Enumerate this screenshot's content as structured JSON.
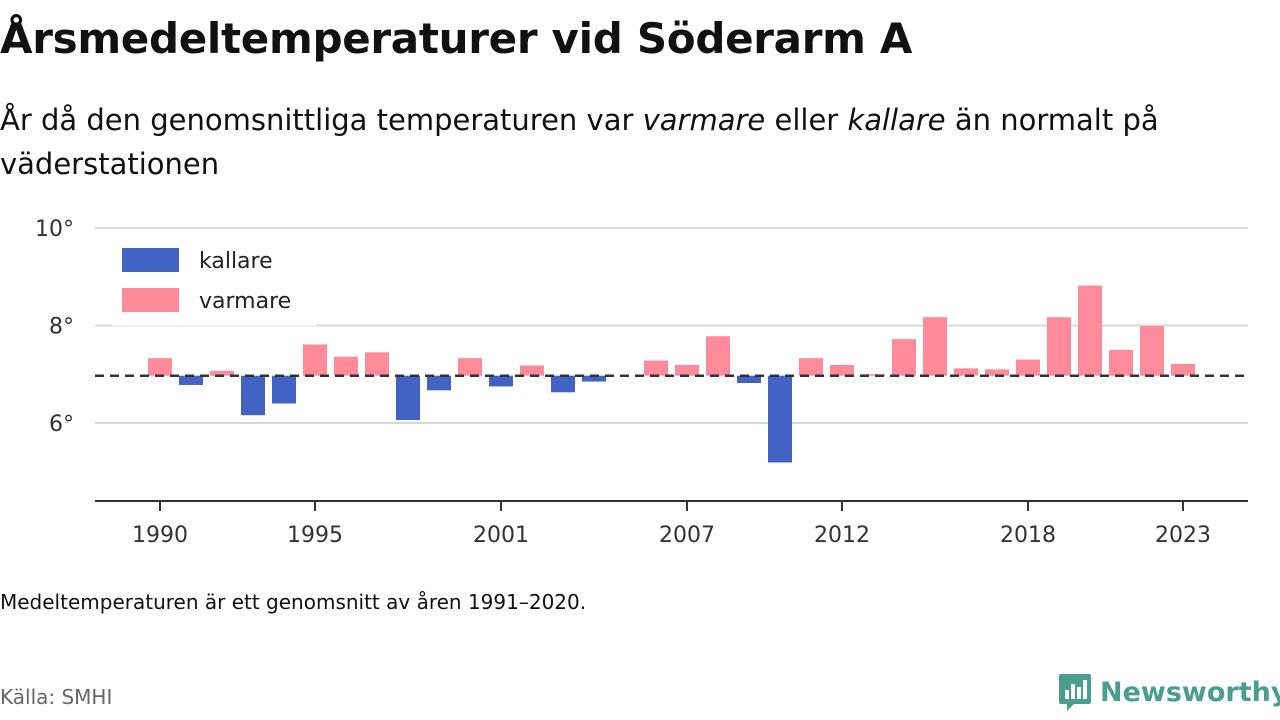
{
  "header": {
    "title": "Årsmedeltemperaturer vid Söderarm A",
    "subtitle_part1": "År då den genomsnittliga temperaturen var ",
    "subtitle_em1": "varmare",
    "subtitle_part2": " eller ",
    "subtitle_em2": "kallare",
    "subtitle_part3": " än normalt på väderstationen"
  },
  "footer": {
    "note": "Medeltemperaturen är ett genomsnitt av åren 1991–2020.",
    "source": "Källa: SMHI",
    "logo_text": "Newsworthy",
    "logo_icon": "newsworthy-logo-icon",
    "logo_color": "#4a9e8e"
  },
  "colors": {
    "warmer": "#ff8a9a",
    "colder": "#4263c4",
    "baseline": "#333333",
    "grid": "#d9d9d9"
  },
  "chart_data": {
    "type": "bar",
    "baseline": 6.97,
    "ylim": [
      4.4,
      10
    ],
    "y_ticks": [
      6,
      8,
      10
    ],
    "y_tick_labels": [
      "6°",
      "8°",
      "10°"
    ],
    "x_ticks": [
      1990,
      1995,
      2001,
      2007,
      2012,
      2018,
      2023
    ],
    "x_tick_labels": [
      "1990",
      "1995",
      "2001",
      "2007",
      "2012",
      "2018",
      "2023"
    ],
    "legend": [
      {
        "key": "colder",
        "label": "kallare"
      },
      {
        "key": "warmer",
        "label": "varmare"
      }
    ],
    "legend_position": "top-left",
    "x": [
      1990,
      1991,
      1992,
      1993,
      1994,
      1995,
      1996,
      1997,
      1998,
      1999,
      2000,
      2001,
      2002,
      2003,
      2004,
      2005,
      2006,
      2007,
      2008,
      2009,
      2010,
      2011,
      2012,
      2013,
      2014,
      2015,
      2016,
      2017,
      2018,
      2019,
      2020,
      2021,
      2022,
      2023
    ],
    "values": [
      7.33,
      6.78,
      7.07,
      6.16,
      6.4,
      7.61,
      7.36,
      7.45,
      6.06,
      6.67,
      7.33,
      6.75,
      7.18,
      6.63,
      6.85,
      null,
      7.28,
      7.19,
      7.78,
      6.82,
      5.19,
      7.33,
      7.19,
      7.0,
      7.72,
      8.17,
      7.12,
      7.1,
      7.3,
      8.17,
      8.82,
      7.5,
      7.99,
      7.21
    ]
  }
}
